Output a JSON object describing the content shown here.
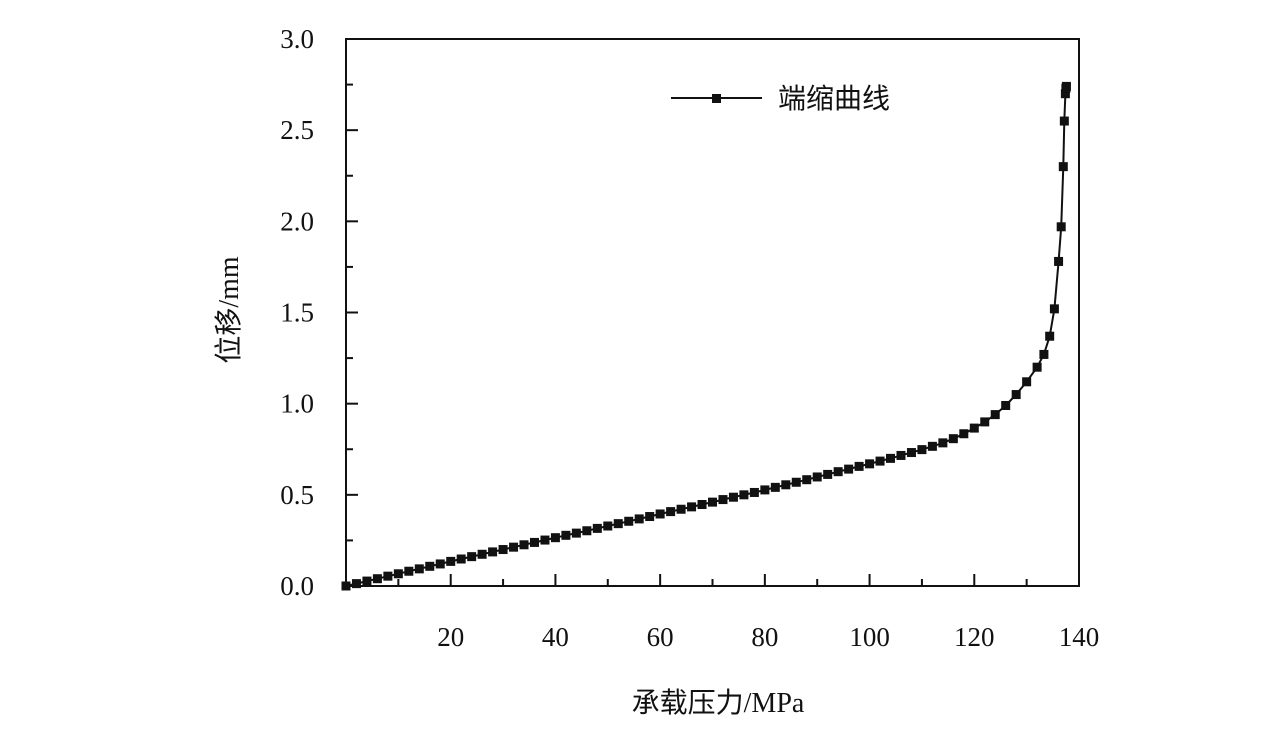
{
  "chart_data": {
    "type": "line",
    "title": "",
    "xlabel": "承载压力/MPa",
    "ylabel": "位移/mm",
    "xlim": [
      0,
      140
    ],
    "ylim": [
      0,
      3.0
    ],
    "x_ticks": [
      20,
      40,
      60,
      80,
      100,
      120,
      140
    ],
    "x_tick_labels": [
      "20",
      "40",
      "60",
      "80",
      "100",
      "120",
      "140"
    ],
    "y_ticks": [
      0,
      0.5,
      1.0,
      1.5,
      2.0,
      2.5,
      3.0
    ],
    "y_tick_labels": [
      "0.0",
      "0.5",
      "1.0",
      "1.5",
      "2.0",
      "2.5",
      "3.0"
    ],
    "grid": false,
    "legend": "top-right",
    "colors": {
      "line": "#111111",
      "marker": "#111111",
      "axis": "#111111"
    },
    "series": [
      {
        "name": "端缩曲线",
        "marker": "square",
        "x": [
          0,
          2,
          4,
          6,
          8,
          10,
          12,
          14,
          16,
          18,
          20,
          22,
          24,
          26,
          28,
          30,
          32,
          34,
          36,
          38,
          40,
          42,
          44,
          46,
          48,
          50,
          52,
          54,
          56,
          58,
          60,
          62,
          64,
          66,
          68,
          70,
          72,
          74,
          76,
          78,
          80,
          82,
          84,
          86,
          88,
          90,
          92,
          94,
          96,
          98,
          100,
          102,
          104,
          106,
          108,
          110,
          112,
          114,
          116,
          118,
          120,
          122,
          124,
          126,
          128,
          130,
          132,
          133.3,
          134.4,
          135.3,
          136.1,
          136.6,
          137.0,
          137.2,
          137.4,
          137.5,
          137.6
        ],
        "y": [
          0,
          0.013,
          0.027,
          0.04,
          0.054,
          0.067,
          0.081,
          0.094,
          0.108,
          0.121,
          0.135,
          0.148,
          0.161,
          0.174,
          0.187,
          0.2,
          0.213,
          0.226,
          0.239,
          0.252,
          0.265,
          0.278,
          0.29,
          0.303,
          0.316,
          0.329,
          0.342,
          0.355,
          0.368,
          0.381,
          0.395,
          0.408,
          0.421,
          0.434,
          0.447,
          0.46,
          0.474,
          0.487,
          0.5,
          0.513,
          0.527,
          0.541,
          0.555,
          0.569,
          0.583,
          0.598,
          0.612,
          0.627,
          0.641,
          0.656,
          0.67,
          0.685,
          0.7,
          0.716,
          0.732,
          0.748,
          0.766,
          0.785,
          0.808,
          0.835,
          0.866,
          0.9,
          0.94,
          0.99,
          1.05,
          1.12,
          1.2,
          1.27,
          1.37,
          1.52,
          1.78,
          1.97,
          2.3,
          2.55,
          2.7,
          2.73,
          2.74
        ]
      }
    ]
  }
}
